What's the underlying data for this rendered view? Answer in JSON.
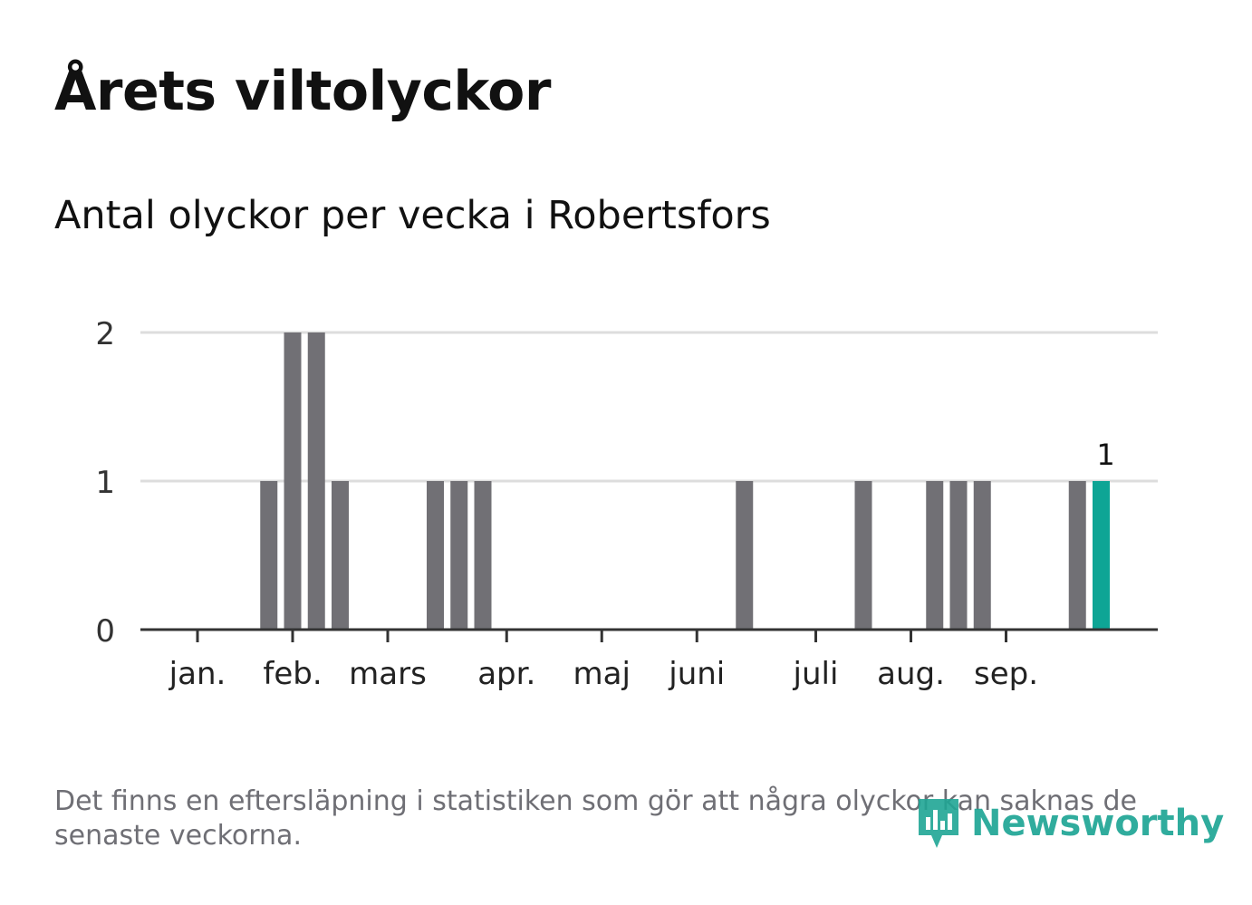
{
  "title": "Årets viltolyckor",
  "subtitle": "Antal olyckor per vecka i Robertsfors",
  "footnote": "Det finns en eftersläpning i statistiken som gör att några olyckor kan saknas de senaste veckorna.",
  "brand": {
    "name": "Newsworthy",
    "icon": "newsworthy-logo-icon",
    "color": "#1fa595"
  },
  "chart_data": {
    "type": "bar",
    "ylim": [
      0,
      2
    ],
    "yticks": [
      "0",
      "1",
      "2"
    ],
    "month_ticks": [
      {
        "label": "jan.",
        "week": 1
      },
      {
        "label": "feb.",
        "week": 5
      },
      {
        "label": "mars",
        "week": 9
      },
      {
        "label": "apr.",
        "week": 14
      },
      {
        "label": "maj",
        "week": 18
      },
      {
        "label": "juni",
        "week": 22
      },
      {
        "label": "juli",
        "week": 27
      },
      {
        "label": "aug.",
        "week": 31
      },
      {
        "label": "sep.",
        "week": 35
      }
    ],
    "weeks": [
      1,
      2,
      3,
      4,
      5,
      6,
      7,
      8,
      9,
      10,
      11,
      12,
      13,
      14,
      15,
      16,
      17,
      18,
      19,
      20,
      21,
      22,
      23,
      24,
      25,
      26,
      27,
      28,
      29,
      30,
      31,
      32,
      33,
      34,
      35,
      36,
      37,
      38,
      39,
      40
    ],
    "values": [
      0,
      0,
      0,
      1,
      2,
      2,
      1,
      0,
      0,
      0,
      1,
      1,
      1,
      0,
      0,
      0,
      0,
      0,
      0,
      0,
      0,
      0,
      0,
      1,
      0,
      0,
      0,
      0,
      1,
      0,
      0,
      1,
      1,
      1,
      0,
      0,
      0,
      1,
      1,
      0
    ],
    "highlight_week": 39,
    "highlight_label": "1",
    "colors": {
      "bar": "#717075",
      "highlight": "#0ea595",
      "grid": "#dddddd",
      "axis": "#333333"
    }
  }
}
